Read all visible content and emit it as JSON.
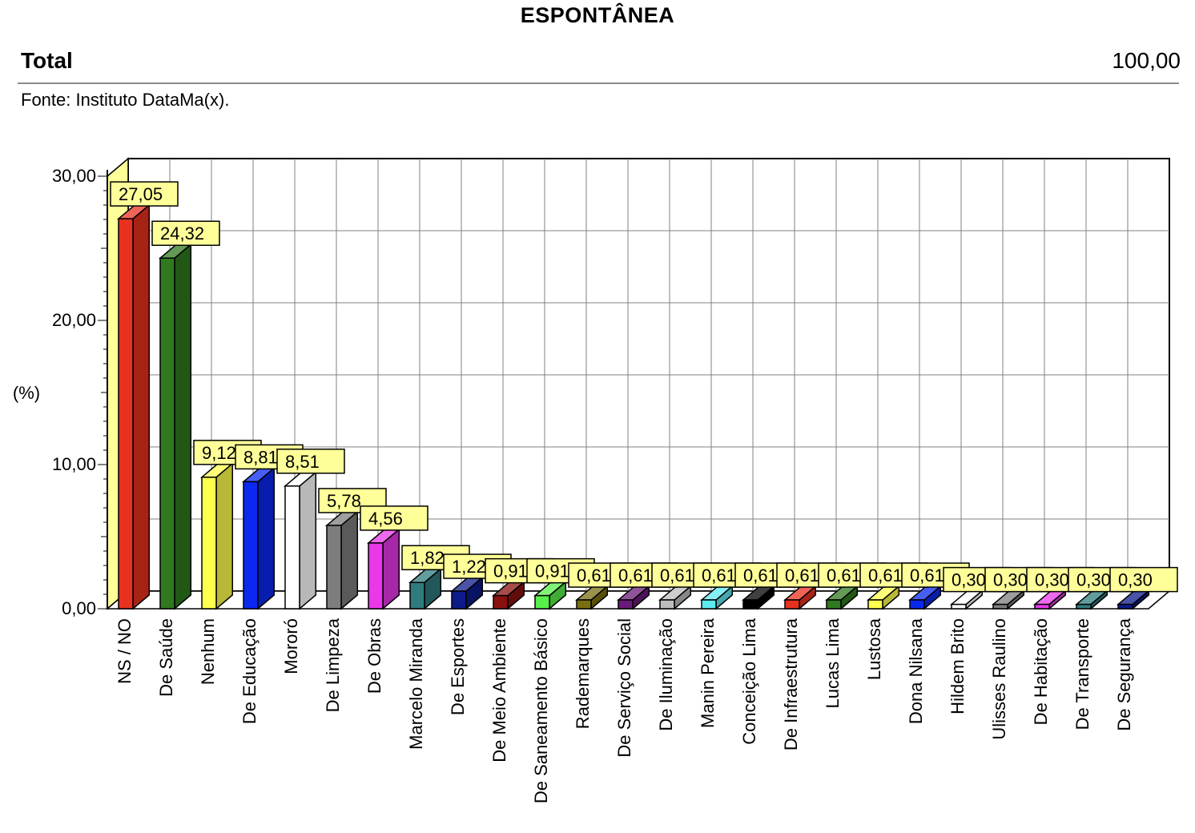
{
  "header": {
    "title": "ESPONTÂNEA",
    "total_label": "Total",
    "total_value": "100,00",
    "source": "Fonte: Instituto DataMa(x)."
  },
  "chart_data": {
    "type": "bar",
    "title": "",
    "xlabel": "",
    "ylabel": "(%)",
    "ylim": [
      0,
      30
    ],
    "yticks": [
      0,
      10,
      20,
      30
    ],
    "ytick_labels": [
      "0,00",
      "10,00",
      "20,00",
      "30,00"
    ],
    "grid": true,
    "three_d": true,
    "categories": [
      "NS / NO",
      "De Saúde",
      "Nenhum",
      "De Educação",
      "Mororó",
      "De Limpeza",
      "De Obras",
      "Marcelo Miranda",
      "De Esportes",
      "De Meio Ambiente",
      "De Saneamento Básico",
      "Rademarques",
      "De Serviço Social",
      "De Iluminação",
      "Manin Pereira",
      "Conceição Lima",
      "De Infraestrutura",
      "Lucas Lima",
      "Lustosa",
      "Dona Nilsana",
      "Hildem Brito",
      "Ulisses Raulino",
      "De Habitação",
      "De Transporte",
      "De Segurança"
    ],
    "values": [
      27.05,
      24.32,
      9.12,
      8.81,
      8.51,
      5.78,
      4.56,
      1.82,
      1.22,
      0.91,
      0.91,
      0.61,
      0.61,
      0.61,
      0.61,
      0.61,
      0.61,
      0.61,
      0.61,
      0.61,
      0.3,
      0.3,
      0.3,
      0.3,
      0.3
    ],
    "value_labels": [
      "27,05",
      "24,32",
      "9,12",
      "8,81",
      "8,51",
      "5,78",
      "4,56",
      "1,82",
      "1,22",
      "0,91",
      "0,91",
      "0,61",
      "0,61",
      "0,61",
      "0,61",
      "0,61",
      "0,61",
      "0,61",
      "0,61",
      "0,61",
      "0,30",
      "0,30",
      "0,30",
      "0,30",
      "0,30"
    ],
    "colors": [
      "#e8311f",
      "#2f7a1e",
      "#ffff4d",
      "#0a28f0",
      "#ffffff",
      "#7d7d7d",
      "#e838e8",
      "#2e7c7e",
      "#0c1a8a",
      "#8a1010",
      "#59ef4a",
      "#7a6e12",
      "#6a1a7a",
      "#bdbdbd",
      "#5ee8f0",
      "#000000",
      "#e8311f",
      "#2f7a1e",
      "#ffff4d",
      "#0a28f0",
      "#ffffff",
      "#7d7d7d",
      "#e838e8",
      "#2e7c7e",
      "#0c1a8a"
    ],
    "label_color": "#ffff99"
  }
}
